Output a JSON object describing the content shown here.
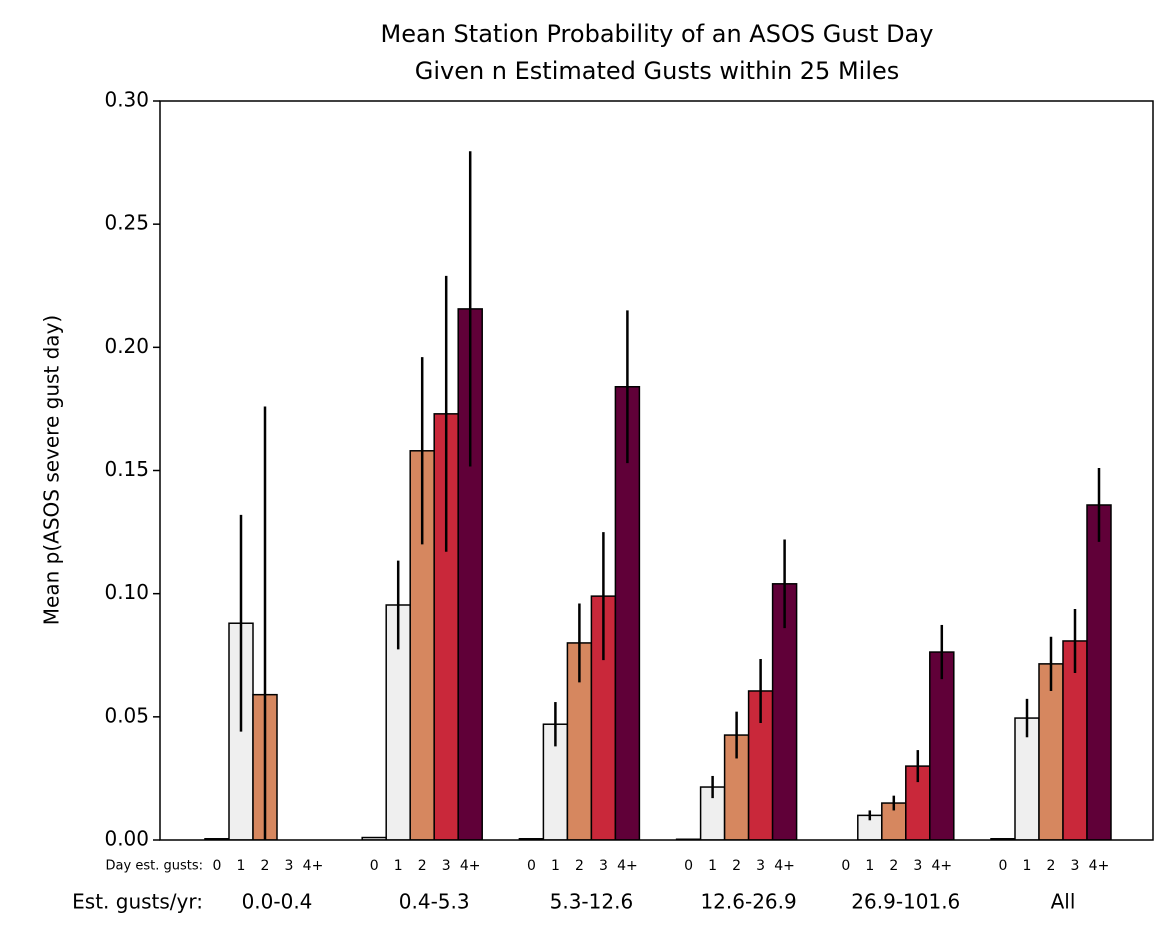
{
  "chart_data": {
    "type": "bar",
    "title": "Mean Station Probability of an ASOS Gust Day",
    "subtitle": "Given n Estimated Gusts within 25 Miles",
    "y_label": "Mean p(ASOS severe gust day)",
    "series_label": "Day est. gusts:",
    "category_label": "Est. gusts/yr:",
    "categories": [
      "0.0-0.4",
      "0.4-5.3",
      "5.3-12.6",
      "12.6-26.9",
      "26.9-101.6",
      "All"
    ],
    "series": [
      {
        "name": "0",
        "color": "#f7f7f7",
        "values": [
          0.0005,
          0.001,
          0.0005,
          0.0003,
          0,
          0.0005
        ],
        "errors": [
          0,
          0,
          0,
          0,
          0,
          0
        ]
      },
      {
        "name": "1",
        "color": "#efefef",
        "values": [
          0.088,
          0.0954,
          0.047,
          0.0215,
          0.01,
          0.0495
        ],
        "errors": [
          0.044,
          0.018,
          0.009,
          0.0045,
          0.002,
          0.0078
        ]
      },
      {
        "name": "2",
        "color": "#d6875f",
        "values": [
          0.059,
          0.158,
          0.08,
          0.0426,
          0.015,
          0.0715
        ],
        "errors": [
          0.117,
          0.038,
          0.016,
          0.0095,
          0.003,
          0.011
        ]
      },
      {
        "name": "3",
        "color": "#c9283a",
        "values": [
          null,
          0.173,
          0.099,
          0.0605,
          0.03,
          0.0808
        ],
        "errors": [
          null,
          0.056,
          0.026,
          0.013,
          0.0065,
          0.013
        ]
      },
      {
        "name": "4+",
        "color": "#600038",
        "values": [
          null,
          0.2156,
          0.184,
          0.104,
          0.0763,
          0.136
        ],
        "errors": [
          null,
          0.064,
          0.031,
          0.018,
          0.011,
          0.015
        ]
      }
    ],
    "ylim": [
      0,
      0.3
    ],
    "yticks": [
      {
        "value": 0,
        "label": "0.00"
      },
      {
        "value": 0.05,
        "label": "0.05"
      },
      {
        "value": 0.1,
        "label": "0.10"
      },
      {
        "value": 0.15,
        "label": "0.15"
      },
      {
        "value": 0.2,
        "label": "0.20"
      },
      {
        "value": 0.25,
        "label": "0.25"
      },
      {
        "value": 0.3,
        "label": "0.30"
      }
    ]
  }
}
